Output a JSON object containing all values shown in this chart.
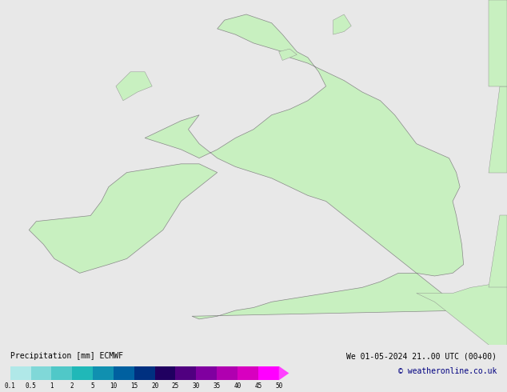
{
  "title_left": "Precipitation [mm] ECMWF",
  "title_right": "We 01-05-2024 21..00 UTC (00+00)",
  "copyright": "© weatheronline.co.uk",
  "colorbar_levels": [
    0.1,
    0.5,
    1,
    2,
    5,
    10,
    15,
    20,
    25,
    30,
    35,
    40,
    45,
    50
  ],
  "colorbar_colors": [
    "#b0e8e8",
    "#80d8d8",
    "#50c8c8",
    "#20b8b8",
    "#1090b0",
    "#0060a0",
    "#003080",
    "#200060",
    "#500080",
    "#8000a0",
    "#b000b0",
    "#d800c0",
    "#ff00ff",
    "#ff40ff"
  ],
  "bg_color": "#e8e8e8",
  "map_bg": "#e8e8e8",
  "land_color": "#c8f0c0",
  "border_color": "#a0a0a0",
  "text_color": "#000000",
  "label_fontsize": 7,
  "title_fontsize": 7,
  "figsize": [
    6.34,
    4.9
  ],
  "dpi": 100
}
